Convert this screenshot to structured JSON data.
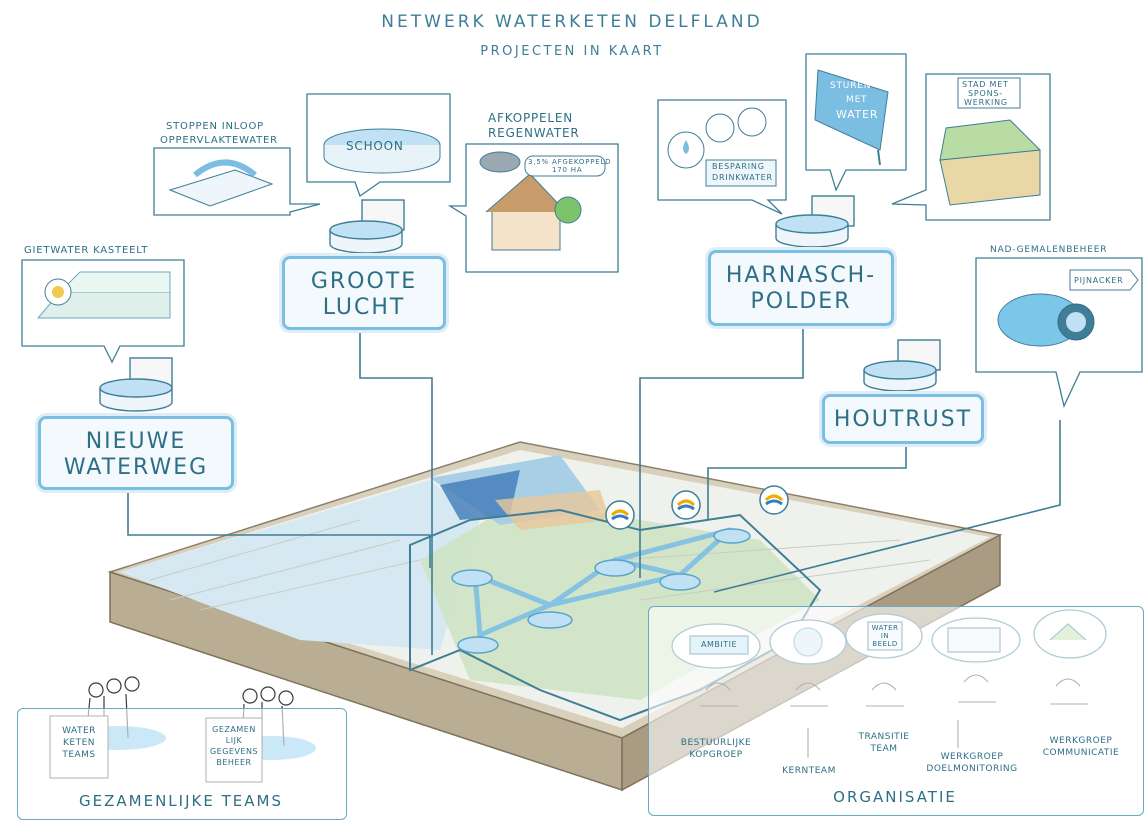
{
  "header": {
    "title": "NETWERK WATERKETEN DELFLAND",
    "subtitle": "PROJECTEN IN KAART"
  },
  "locations": {
    "nieuwe_waterweg": {
      "line1": "NIEUWE",
      "line2": "WATERWEG"
    },
    "groote_lucht": {
      "line1": "GROOTE",
      "line2": "LUCHT"
    },
    "harnaschpolder": {
      "line1": "HARNASCH-",
      "line2": "POLDER"
    },
    "houtrust": {
      "line1": "HOUTRUST"
    }
  },
  "callouts": {
    "gietwater": "GIETWATER KASTEELT",
    "stoppen_line1": "STOPPEN INLOOP",
    "stoppen_line2": "OPPERVLAKTEWATER",
    "schoon": "SCHOON",
    "afkoppelen_line1": "AFKOPPELEN",
    "afkoppelen_line2": "REGENWATER",
    "afkoppelen_stat_line1": "3,5% AFGEKOPPELD",
    "afkoppelen_stat_line2": "170 HA",
    "besparing_line1": "BESPARING",
    "besparing_line2": "DRINKWATER",
    "sturen_line1": "STUREN",
    "sturen_line2": "MET",
    "sturen_line3": "WATER",
    "stad_line1": "STAD MET",
    "stad_line2": "SPONS-",
    "stad_line3": "WERKING",
    "nad": "NAD-GEMALENBEHEER",
    "pijnacker": "PIJNACKER"
  },
  "teams": {
    "label": "GEZAMENLIJKE TEAMS",
    "sign1_line1": "WATER",
    "sign1_line2": "KETEN",
    "sign1_line3": "TEAMS",
    "sign2_line1": "GEZAMEN",
    "sign2_line2": "LIJK",
    "sign2_line3": "GEGEVENS",
    "sign2_line4": "BEHEER"
  },
  "organisatie": {
    "label": "ORGANISATIE",
    "ambitie": "AMBITIE",
    "water_in_beeld_line1": "WATER",
    "water_in_beeld_line2": "IN",
    "water_in_beeld_line3": "BEELD",
    "groups": [
      {
        "line1": "BESTUURLIJKE",
        "line2": "KOPGROEP"
      },
      {
        "line1": "KERNTEAM",
        "line2": ""
      },
      {
        "line1": "TRANSITIE",
        "line2": "TEAM"
      },
      {
        "line1": "WERKGROEP",
        "line2": "DOELMONITORING"
      },
      {
        "line1": "WERKGROEP",
        "line2": "COMMUNICATIE"
      }
    ]
  },
  "colors": {
    "accent": "#7cbde2",
    "ink": "#2e6f86",
    "water": "#bfe1f3",
    "map_green": "#cfe3c5"
  }
}
